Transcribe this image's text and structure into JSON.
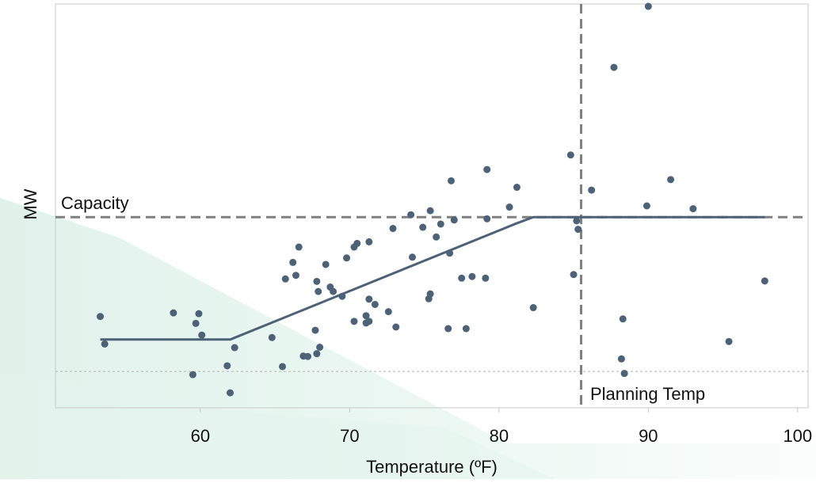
{
  "chart_data": {
    "type": "scatter",
    "title": "",
    "xlabel": "Temperature (ºF)",
    "ylabel": "MW",
    "xlim": [
      50.3,
      100.7
    ],
    "xticks": [
      60,
      70,
      80,
      90,
      100
    ],
    "y_units": "relative (no y tick labels shown)",
    "ylim": [
      0,
      100
    ],
    "grid": false,
    "colors": {
      "points": "#4d6177",
      "fit_line": "#4d6177",
      "reference_lines": "#808080",
      "baseline_dotted": "#b4b4b4",
      "frame": "#c8c8c8",
      "background_tint": "#e3f3ee"
    },
    "annotations": [
      {
        "label": "Capacity",
        "kind": "horizontal dashed line",
        "y": 47.2
      },
      {
        "label": "Planning Temp",
        "kind": "vertical dashed line",
        "x": 85.5
      }
    ],
    "baseline_dotted_y": 9.0,
    "fit_line": {
      "description": "piecewise linear fit: flat, rising segment, flat at capacity",
      "x": [
        53.3,
        62.0,
        81.2,
        82.3,
        97.8
      ],
      "y": [
        16.9,
        16.9,
        45.7,
        47.2,
        47.2
      ]
    },
    "points": {
      "x": [
        53.3,
        53.6,
        58.2,
        59.5,
        59.7,
        59.9,
        60.1,
        62.0,
        61.8,
        62.3,
        64.8,
        65.5,
        65.7,
        66.2,
        66.4,
        66.6,
        66.9,
        67.2,
        67.7,
        67.8,
        67.8,
        67.9,
        68.0,
        68.4,
        68.7,
        68.9,
        69.5,
        69.8,
        70.3,
        70.3,
        70.5,
        71.1,
        71.1,
        71.3,
        71.3,
        71.3,
        71.7,
        72.6,
        72.9,
        73.1,
        74.1,
        74.2,
        74.9,
        75.3,
        75.4,
        75.4,
        75.8,
        76.1,
        76.6,
        76.7,
        76.8,
        77.0,
        77.5,
        77.8,
        78.2,
        79.1,
        79.2,
        79.2,
        80.7,
        81.2,
        82.3,
        84.8,
        85.0,
        85.2,
        85.3,
        86.2,
        87.7,
        88.2,
        88.3,
        88.4,
        89.9,
        90.0,
        91.5,
        93.0,
        95.4,
        97.8
      ],
      "y": [
        22.6,
        15.8,
        23.5,
        8.2,
        20.9,
        23.3,
        18.0,
        3.7,
        10.4,
        14.9,
        17.4,
        10.2,
        31.9,
        36.0,
        32.8,
        39.8,
        12.8,
        12.7,
        19.2,
        31.3,
        13.4,
        28.8,
        15.0,
        35.5,
        29.9,
        28.8,
        27.6,
        37.1,
        39.8,
        21.4,
        40.7,
        22.8,
        21.0,
        26.9,
        21.4,
        41.1,
        25.6,
        23.8,
        44.4,
        20.0,
        47.8,
        37.3,
        44.7,
        27.0,
        28.2,
        48.8,
        42.3,
        45.5,
        19.6,
        38.3,
        56.2,
        46.5,
        32.1,
        19.6,
        32.5,
        32.1,
        46.8,
        59.0,
        49.7,
        54.6,
        24.8,
        62.6,
        33.0,
        46.3,
        44.2,
        53.9,
        84.3,
        12.1,
        22.0,
        8.5,
        50.0,
        99.4,
        56.5,
        49.3,
        16.4,
        31.4
      ]
    }
  }
}
